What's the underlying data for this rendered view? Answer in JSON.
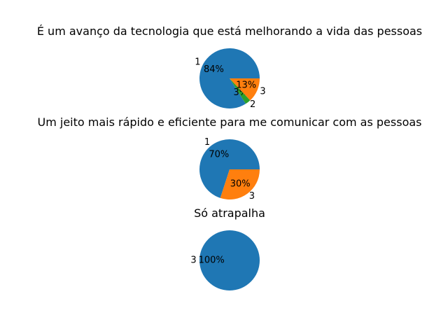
{
  "chart_data": [
    {
      "type": "pie",
      "title": "É um avanço da tecnologia que está melhorando a vida das pessoas",
      "slices": [
        {
          "label": "1",
          "value": 84,
          "pct_text": "84%",
          "color": "#1f77b4"
        },
        {
          "label": "2",
          "value": 3,
          "pct_text": "3%",
          "color": "#2ca02c"
        },
        {
          "label": "3",
          "value": 13,
          "pct_text": "13%",
          "color": "#ff7f0e"
        }
      ]
    },
    {
      "type": "pie",
      "title": "Um jeito mais rápido e eficiente para me comunicar com as pessoas",
      "slices": [
        {
          "label": "1",
          "value": 70,
          "pct_text": "70%",
          "color": "#1f77b4"
        },
        {
          "label": "3",
          "value": 30,
          "pct_text": "30%",
          "color": "#ff7f0e"
        }
      ]
    },
    {
      "type": "pie",
      "title": "Só atrapalha",
      "slices": [
        {
          "label": "3",
          "value": 100,
          "pct_text": "100%",
          "color": "#1f77b4"
        }
      ]
    }
  ]
}
